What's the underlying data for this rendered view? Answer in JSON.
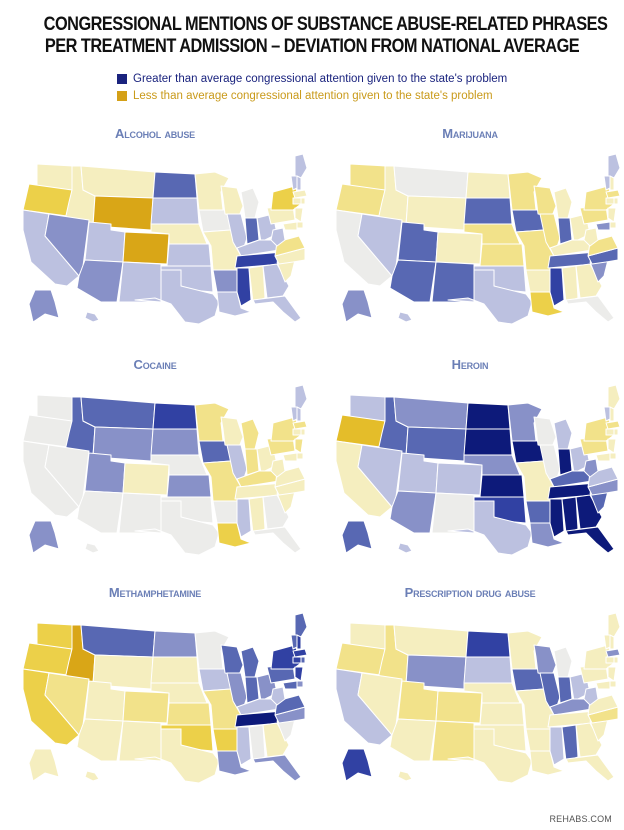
{
  "title": {
    "line1": "Congressional mentions of substance abuse-related phrases",
    "line2": "per treatment admission – deviation from national average"
  },
  "legend": {
    "items": [
      {
        "label": "Greater than average congressional attention given to the state's problem",
        "color": "#1a237e",
        "text_color": "#1a237e"
      },
      {
        "label": "Less than average congressional attention given to the state's problem",
        "color": "#d4a017",
        "text_color": "#c99a1a"
      }
    ]
  },
  "maps": [
    {
      "title": "Alcohol abuse",
      "shading": {
        "WA": "y1",
        "OR": "y3",
        "CA": "b1",
        "ID": "y1",
        "NV": "b2",
        "AZ": "b2",
        "MT": "y1",
        "WY": "y5",
        "UT": "b1",
        "CO": "y5",
        "NM": "b1",
        "ND": "b3",
        "SD": "b1",
        "NE": "y1",
        "KS": "b1",
        "OK": "b1",
        "TX": "b1",
        "MN": "y1",
        "IA": "n",
        "MO": "y1",
        "AR": "b2",
        "LA": "b1",
        "WI": "y1",
        "IL": "b1",
        "MI": "n",
        "IN": "b3",
        "OH": "b1",
        "KY": "b1",
        "TN": "b4",
        "MS": "b4",
        "AL": "y1",
        "GA": "b1",
        "FL": "b1",
        "SC": "y1",
        "NC": "y1",
        "VA": "y2",
        "WV": "b1",
        "PA": "y1",
        "NY": "y3",
        "ME": "b1",
        "VT": "b1",
        "NH": "b1",
        "MA": "y1",
        "CT": "y1",
        "NJ": "y1",
        "DE": "y1",
        "MD": "y1",
        "RI": "y1",
        "AK": "b2",
        "HI": "b1"
      }
    },
    {
      "title": "Marijuana",
      "shading": {
        "WA": "y2",
        "OR": "y2",
        "CA": "n",
        "ID": "y1",
        "NV": "b1",
        "AZ": "b3",
        "MT": "n",
        "WY": "y1",
        "UT": "b3",
        "CO": "y1",
        "NM": "b3",
        "ND": "y1",
        "SD": "b3",
        "NE": "y2",
        "KS": "y2",
        "OK": "b1",
        "TX": "b1",
        "MN": "y2",
        "IA": "b3",
        "MO": "y2",
        "AR": "y1",
        "LA": "y3",
        "WI": "y2",
        "IL": "y2",
        "MI": "y1",
        "IN": "b3",
        "OH": "y1",
        "KY": "y1",
        "TN": "b3",
        "MS": "b4",
        "AL": "y1",
        "GA": "y1",
        "FL": "n",
        "SC": "b2",
        "NC": "b3",
        "VA": "y2",
        "WV": "y1",
        "PA": "y2",
        "NY": "y2",
        "ME": "b1",
        "VT": "b1",
        "NH": "y1",
        "MA": "y2",
        "CT": "y1",
        "NJ": "y1",
        "DE": "y1",
        "MD": "b2",
        "RI": "y1",
        "AK": "b2",
        "HI": "b1"
      }
    },
    {
      "title": "Cocaine",
      "shading": {
        "WA": "n",
        "OR": "n",
        "CA": "n",
        "ID": "b3",
        "NV": "n",
        "AZ": "n",
        "MT": "b3",
        "WY": "b2",
        "UT": "b2",
        "CO": "y1",
        "NM": "n",
        "ND": "b4",
        "SD": "b2",
        "NE": "n",
        "KS": "b2",
        "OK": "n",
        "TX": "n",
        "MN": "y2",
        "IA": "b3",
        "MO": "y2",
        "AR": "n",
        "LA": "y3",
        "WI": "y1",
        "IL": "b1",
        "MI": "y2",
        "IN": "y2",
        "OH": "y1",
        "KY": "y2",
        "TN": "y1",
        "MS": "b1",
        "AL": "y1",
        "GA": "n",
        "FL": "n",
        "SC": "y1",
        "NC": "y1",
        "VA": "y1",
        "WV": "y1",
        "PA": "y2",
        "NY": "y2",
        "ME": "b1",
        "VT": "b1",
        "NH": "b1",
        "MA": "y2",
        "CT": "y1",
        "NJ": "y2",
        "DE": "y1",
        "MD": "y1",
        "RI": "y1",
        "AK": "b2",
        "HI": "n"
      }
    },
    {
      "title": "Heroin",
      "shading": {
        "WA": "b1",
        "OR": "y4",
        "CA": "y1",
        "ID": "b3",
        "NV": "b1",
        "AZ": "b2",
        "MT": "b2",
        "WY": "b3",
        "UT": "b1",
        "CO": "b1",
        "NM": "n",
        "ND": "b5",
        "SD": "b5",
        "NE": "b2",
        "KS": "b5",
        "OK": "b4",
        "TX": "b1",
        "MN": "b2",
        "IA": "b5",
        "MO": "y1",
        "AR": "b3",
        "LA": "b2",
        "WI": "n",
        "IL": "n",
        "MI": "b1",
        "IN": "b5",
        "OH": "b1",
        "KY": "b3",
        "TN": "b5",
        "MS": "b5",
        "AL": "b5",
        "GA": "b5",
        "FL": "b5",
        "SC": "b3",
        "NC": "b2",
        "VA": "b1",
        "WV": "b2",
        "PA": "y2",
        "NY": "y2",
        "ME": "y1",
        "VT": "b1",
        "NH": "y1",
        "MA": "y2",
        "CT": "y1",
        "NJ": "y1",
        "DE": "y1",
        "MD": "y1",
        "RI": "y1",
        "AK": "b3",
        "HI": "b1"
      }
    },
    {
      "title": "Methamphetamine",
      "shading": {
        "WA": "y3",
        "OR": "y3",
        "CA": "y3",
        "ID": "y5",
        "NV": "y2",
        "AZ": "y1",
        "MT": "b3",
        "WY": "y1",
        "UT": "y1",
        "CO": "y2",
        "NM": "y1",
        "ND": "b2",
        "SD": "y1",
        "NE": "y1",
        "KS": "y2",
        "OK": "y3",
        "TX": "y1",
        "MN": "n",
        "IA": "b1",
        "MO": "y2",
        "AR": "y3",
        "LA": "b2",
        "WI": "b3",
        "IL": "b2",
        "MI": "b3",
        "IN": "b3",
        "OH": "b2",
        "KY": "b1",
        "TN": "b5",
        "MS": "b1",
        "AL": "n",
        "GA": "y1",
        "FL": "b2",
        "SC": "n",
        "NC": "b2",
        "VA": "b3",
        "WV": "b1",
        "PA": "b3",
        "NY": "b4",
        "ME": "b3",
        "VT": "b3",
        "NH": "b4",
        "MA": "b4",
        "CT": "b4",
        "NJ": "b4",
        "DE": "b2",
        "MD": "b3",
        "RI": "b3",
        "AK": "y1",
        "HI": "y1"
      }
    },
    {
      "title": "Prescription drug abuse",
      "shading": {
        "WA": "y1",
        "OR": "y2",
        "CA": "b1",
        "ID": "y2",
        "NV": "y1",
        "AZ": "y1",
        "MT": "y1",
        "WY": "b2",
        "UT": "y2",
        "CO": "y2",
        "NM": "y2",
        "ND": "b4",
        "SD": "b1",
        "NE": "y1",
        "KS": "y1",
        "OK": "y1",
        "TX": "y1",
        "MN": "y1",
        "IA": "b3",
        "MO": "y1",
        "AR": "y1",
        "LA": "y1",
        "WI": "b2",
        "IL": "b3",
        "MI": "n",
        "IN": "b3",
        "OH": "b1",
        "KY": "b2",
        "TN": "y1",
        "MS": "b1",
        "AL": "b3",
        "GA": "y1",
        "FL": "y1",
        "SC": "y1",
        "NC": "y2",
        "VA": "y1",
        "WV": "b1",
        "PA": "y1",
        "NY": "y1",
        "ME": "y1",
        "VT": "y1",
        "NH": "y1",
        "MA": "b2",
        "CT": "y1",
        "NJ": "y1",
        "DE": "y1",
        "MD": "y1",
        "RI": "y1",
        "AK": "b4",
        "HI": "y1"
      }
    }
  ],
  "shade_colors": {
    "b5": "#0d1a7a",
    "b4": "#3141a3",
    "b3": "#5868b3",
    "b2": "#8891c8",
    "b1": "#bcc1e0",
    "n": "#ececea",
    "y1": "#f5eebf",
    "y2": "#f2e28a",
    "y3": "#ecd049",
    "y4": "#e4bd2a",
    "y5": "#d9a617"
  },
  "source": "REHABS.COM"
}
